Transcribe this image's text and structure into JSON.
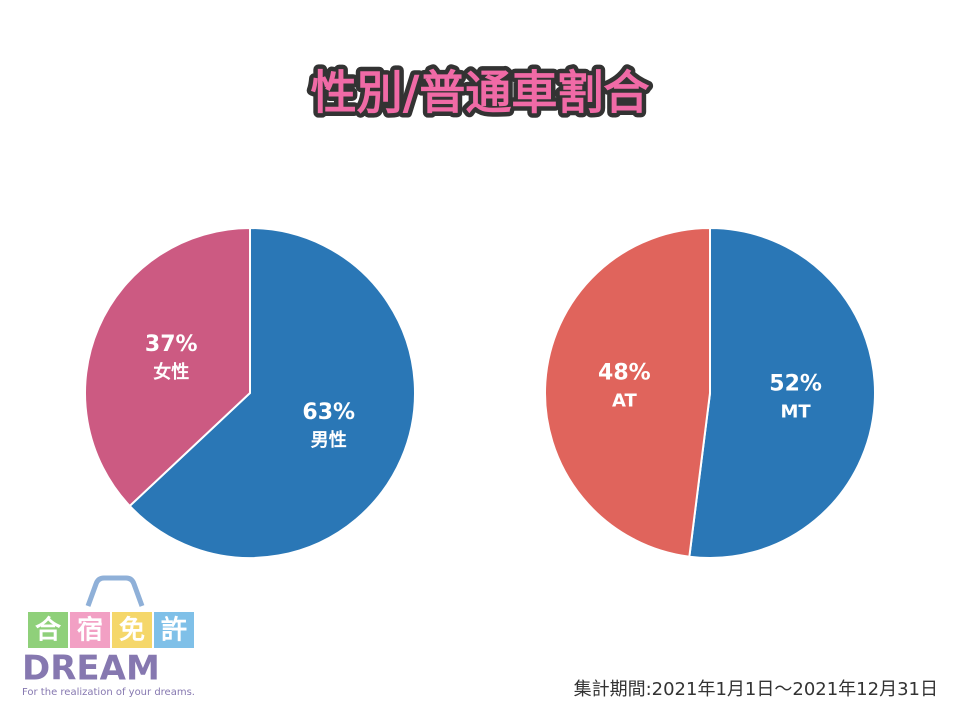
{
  "title": "性別/普通車割合",
  "chart_data": [
    {
      "type": "pie",
      "categories": [
        "男性",
        "女性"
      ],
      "values": [
        63,
        37
      ],
      "value_labels": [
        "63%",
        "37%"
      ],
      "colors": [
        "#2a77b6",
        "#cc5a82"
      ]
    },
    {
      "type": "pie",
      "categories": [
        "MT",
        "AT"
      ],
      "values": [
        52,
        48
      ],
      "value_labels": [
        "52%",
        "48%"
      ],
      "colors": [
        "#2a77b6",
        "#e0645c"
      ]
    }
  ],
  "period": "集計期間:2021年1月1日～2021年12月31日",
  "logo": {
    "name": [
      "合",
      "宿",
      "免",
      "許"
    ],
    "brand": "DREAM",
    "tagline": "For the realization of your dreams."
  }
}
